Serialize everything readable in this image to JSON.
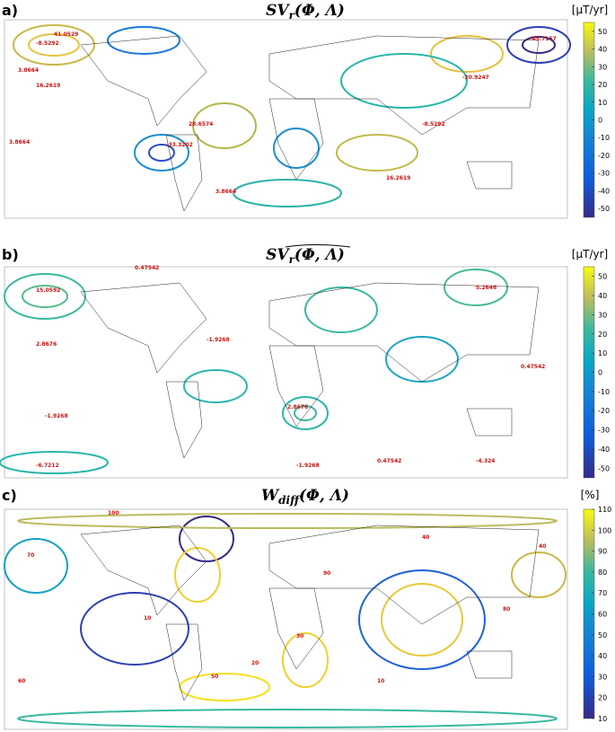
{
  "panels": [
    {
      "label": "a)",
      "title": {
        "main": "SV",
        "sub": "r",
        "args": "(Φ, Λ)"
      },
      "unit": "[μT/yr]",
      "colorbar": {
        "lim": [
          -55,
          55
        ],
        "ticks": [
          50,
          40,
          30,
          20,
          10,
          0,
          -10,
          -20,
          -30,
          -40,
          -50
        ]
      },
      "contour_labels": [
        "-8.5292",
        "16.2619",
        "3.8664",
        "-20.9247",
        "-33.3202",
        "28.6574",
        "41.0529",
        "-8.5292",
        "16.2619",
        "3.8664",
        "-45.7157",
        "3.8664"
      ]
    },
    {
      "label": "b)",
      "title": {
        "main": "SV",
        "sub": "r",
        "args": "(Φ, Λ)"
      },
      "unit": "[μT/yr]",
      "colorbar": {
        "lim": [
          -55,
          55
        ],
        "ticks": [
          50,
          40,
          30,
          20,
          10,
          0,
          -10,
          -20,
          -30,
          -40,
          -50
        ]
      },
      "contour_labels": [
        "0.47542",
        "15.0592",
        "2.8676",
        "-1.9268",
        "-6.7212",
        "0.47542",
        "5.2646",
        "-1.9268",
        "2.8676",
        "-4.324",
        "0.47542",
        "-1.9268"
      ]
    },
    {
      "label": "c)",
      "title": {
        "main": "W",
        "sub": "diff",
        "args": "(Φ, Λ)"
      },
      "unit": "[%]",
      "colorbar": {
        "lim": [
          10,
          110
        ],
        "ticks": [
          110,
          100,
          90,
          80,
          70,
          60,
          50,
          40,
          30,
          20,
          10
        ]
      },
      "contour_labels": [
        "100",
        "70",
        "40",
        "10",
        "20",
        "50",
        "80",
        "30",
        "60",
        "90",
        "10",
        "40"
      ]
    }
  ]
}
